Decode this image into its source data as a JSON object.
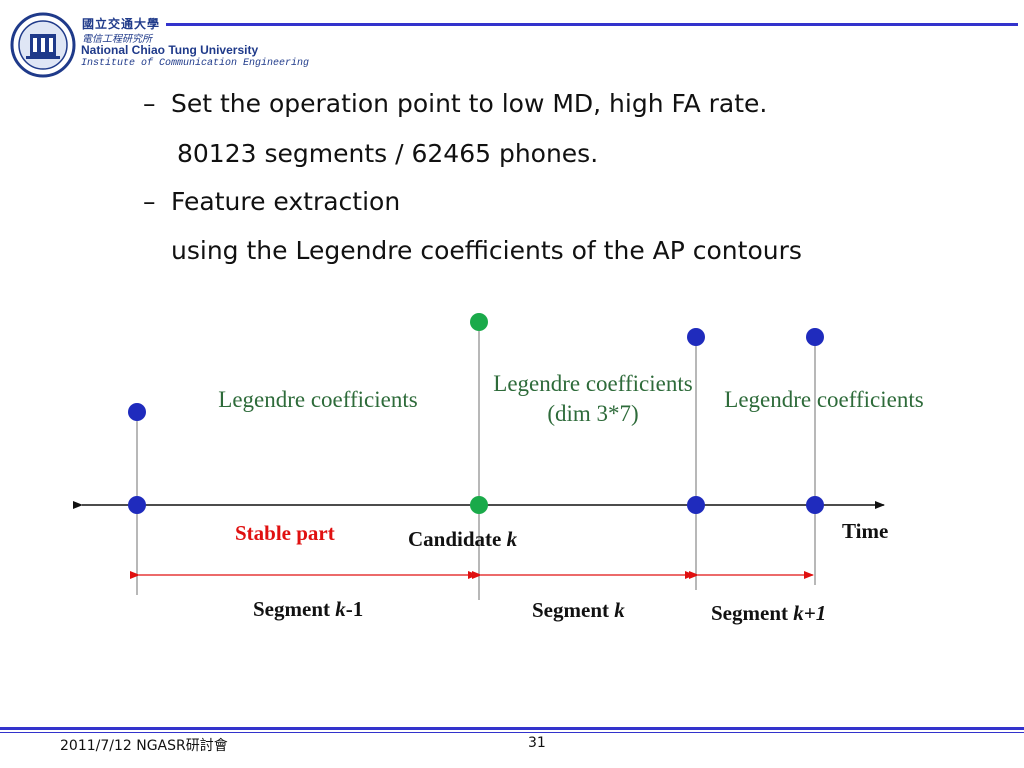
{
  "header": {
    "university_zh": "國立交通大學",
    "institute_zh": "電信工程研究所",
    "university_en": "National Chiao Tung University",
    "institute_en": "Institute of Communication Engineering"
  },
  "bullets": [
    {
      "text": "Set the operation point to low MD, high FA rate.",
      "dash": "–"
    },
    {
      "text": "80123 segments / 62465 phones."
    },
    {
      "text": "Feature extraction",
      "dash": "–"
    },
    {
      "text": "using the Legendre coefficients of the AP contours"
    }
  ],
  "diagram": {
    "legendre_1": "Legendre coefficients",
    "legendre_2": "Legendre coefficients",
    "legendre_2_dim": "(dim 3*7)",
    "legendre_3": "Legendre coefficients",
    "stable_part": "Stable part",
    "candidate": "Candidate ",
    "candidate_k": "k",
    "time": "Time",
    "segment_prev": "Segment ",
    "segment_prev_k": "k",
    "segment_prev_suffix": "-1",
    "segment_cur": "Segment ",
    "segment_cur_k": "k",
    "segment_next": "Segment ",
    "segment_next_k": "k+1",
    "colors": {
      "blue_dot": "#1f2bbd",
      "green_dot": "#1aaa4a",
      "arrow_red": "#e01010",
      "label_green": "#2e6b3a"
    }
  },
  "footer": {
    "date_event": "2011/7/12 NGASR研討會",
    "page_number": "31"
  }
}
